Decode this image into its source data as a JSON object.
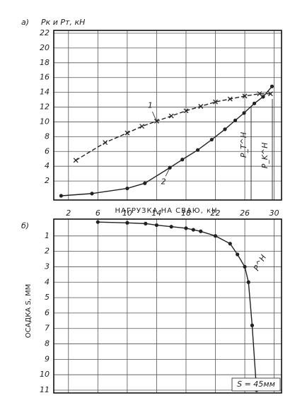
{
  "chart_data": [
    {
      "type": "line",
      "panel_label": "а)",
      "title": "Pк и Pт, кН",
      "xlim": [
        0,
        31
      ],
      "ylim": [
        0,
        22
      ],
      "yticks": [
        2,
        4,
        6,
        8,
        10,
        12,
        14,
        16,
        18,
        20,
        22
      ],
      "grid": true,
      "series": [
        {
          "name": "1",
          "color": "#222",
          "marker": "x",
          "dash": true,
          "x": [
            3,
            7,
            10,
            12,
            14,
            16,
            18,
            20,
            22,
            24,
            26,
            28,
            29.5
          ],
          "values": [
            4.8,
            7.2,
            8.5,
            9.4,
            10.1,
            10.8,
            11.5,
            12.1,
            12.7,
            13.1,
            13.5,
            13.8,
            13.8
          ]
        },
        {
          "name": "2",
          "color": "#222",
          "marker": "o",
          "dash": false,
          "x": [
            1,
            5.2,
            10,
            12.4,
            15.8,
            17.5,
            19.6,
            21.5,
            23.3,
            24.7,
            25.9,
            27.3,
            28.5,
            29.7
          ],
          "values": [
            0,
            0.3,
            1,
            1.7,
            3.8,
            4.9,
            6.2,
            7.6,
            9,
            10.2,
            11.2,
            12.5,
            13.4,
            14.8
          ]
        }
      ],
      "annotations": [
        "P_T^H",
        "P_K^H"
      ]
    },
    {
      "type": "line",
      "panel_label": "б)",
      "x_label": "НАГРУЗКА НА СВАЮ, кН",
      "y_label": "ОСАДКА S, ММ",
      "xlim": [
        0,
        31
      ],
      "xticks": [
        2,
        6,
        10,
        14,
        18,
        22,
        26,
        30
      ],
      "ylim": [
        0,
        11
      ],
      "y_inverted": true,
      "yticks": [
        1,
        2,
        3,
        4,
        5,
        6,
        7,
        8,
        9,
        10,
        11
      ],
      "grid": true,
      "series": [
        {
          "color": "#222",
          "marker": "o",
          "dash": false,
          "x": [
            6,
            10,
            12.5,
            14,
            16,
            18,
            19,
            20,
            22,
            24,
            25,
            26,
            26.5,
            27,
            27.6
          ],
          "values": [
            0.1,
            0.15,
            0.2,
            0.3,
            0.4,
            0.5,
            0.6,
            0.7,
            1.0,
            1.5,
            2.2,
            3,
            4,
            6.8,
            11
          ]
        }
      ],
      "annotations": [
        "P^H",
        "S = 45мм"
      ]
    }
  ]
}
